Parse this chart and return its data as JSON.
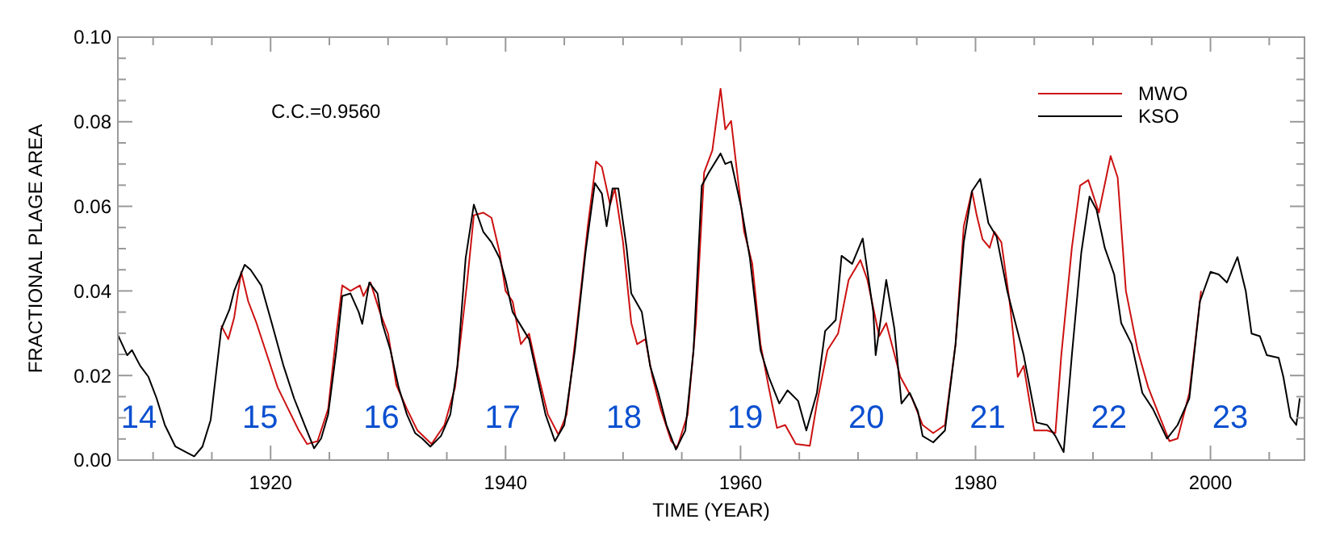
{
  "chart_data": {
    "type": "line",
    "xlabel": "TIME (YEAR)",
    "ylabel": "FRACTIONAL PLAGE AREA",
    "xlim": [
      1907,
      2008
    ],
    "ylim": [
      0,
      0.1
    ],
    "xticks": [
      {
        "value": 1910,
        "label": null
      },
      {
        "value": 1915,
        "label": null
      },
      1920,
      {
        "value": 1925,
        "label": null
      },
      {
        "value": 1930,
        "label": null
      },
      {
        "value": 1935,
        "label": null
      },
      1940,
      {
        "value": 1945,
        "label": null
      },
      {
        "value": 1950,
        "label": null
      },
      {
        "value": 1955,
        "label": null
      },
      1960,
      {
        "value": 1965,
        "label": null
      },
      {
        "value": 1970,
        "label": null
      },
      {
        "value": 1975,
        "label": null
      },
      1980,
      {
        "value": 1985,
        "label": null
      },
      {
        "value": 1990,
        "label": null
      },
      {
        "value": 1995,
        "label": null
      },
      2000,
      {
        "value": 2005,
        "label": null
      }
    ],
    "yticks": [
      {
        "value": 0,
        "label": "0.00"
      },
      {
        "value": 0.005,
        "label": null
      },
      {
        "value": 0.01,
        "label": null
      },
      {
        "value": 0.015,
        "label": null
      },
      {
        "value": 0.02,
        "label": "0.02"
      },
      {
        "value": 0.025,
        "label": null
      },
      {
        "value": 0.03,
        "label": null
      },
      {
        "value": 0.035,
        "label": null
      },
      {
        "value": 0.04,
        "label": "0.04"
      },
      {
        "value": 0.045,
        "label": null
      },
      {
        "value": 0.05,
        "label": null
      },
      {
        "value": 0.055,
        "label": null
      },
      {
        "value": 0.06,
        "label": "0.06"
      },
      {
        "value": 0.065,
        "label": null
      },
      {
        "value": 0.07,
        "label": null
      },
      {
        "value": 0.075,
        "label": null
      },
      {
        "value": 0.08,
        "label": "0.08"
      },
      {
        "value": 0.085,
        "label": null
      },
      {
        "value": 0.09,
        "label": null
      },
      {
        "value": 0.095,
        "label": null
      },
      {
        "value": 0.1,
        "label": "0.10"
      }
    ],
    "grid": false,
    "legend": "top right",
    "marker": "none",
    "line_style": "solid",
    "series": [
      {
        "name": "MWO",
        "color": "#cc1111",
        "x": [
          1915.8,
          1916.4,
          1916.9,
          1917.5,
          1918.1,
          1918.8,
          1919.7,
          1920.6,
          1921.5,
          1922.4,
          1923.1,
          1924.0,
          1924.9,
          1925.6,
          1926.1,
          1926.8,
          1927.6,
          1927.9,
          1928.5,
          1929.3,
          1930.0,
          1930.7,
          1931.6,
          1932.5,
          1933.7,
          1934.8,
          1935.7,
          1936.7,
          1937.3,
          1938.1,
          1938.8,
          1939.5,
          1940.0,
          1940.6,
          1941.3,
          1942.0,
          1942.7,
          1943.6,
          1944.5,
          1945.2,
          1946.1,
          1947.0,
          1947.7,
          1948.2,
          1948.9,
          1949.3,
          1950.0,
          1950.7,
          1951.2,
          1951.9,
          1952.5,
          1953.2,
          1954.1,
          1954.6,
          1955.5,
          1956.2,
          1956.9,
          1957.6,
          1958.3,
          1958.7,
          1959.2,
          1959.6,
          1960.3,
          1961.0,
          1961.7,
          1962.4,
          1963.1,
          1963.8,
          1964.7,
          1965.9,
          1966.5,
          1967.4,
          1968.3,
          1969.2,
          1970.2,
          1970.8,
          1971.8,
          1972.4,
          1973.6,
          1974.6,
          1975.5,
          1976.4,
          1977.4,
          1978.3,
          1979.0,
          1979.7,
          1980.1,
          1980.6,
          1981.2,
          1981.6,
          1982.2,
          1982.9,
          1983.6,
          1984.1,
          1985.0,
          1986.1,
          1986.8,
          1987.3,
          1988.2,
          1988.9,
          1989.6,
          1990.5,
          1991.5,
          1992.1,
          1992.8,
          1993.8,
          1994.7,
          1995.6,
          1996.5,
          1997.2,
          1998.2,
          1999.2
        ],
        "values": [
          0.0318,
          0.0286,
          0.0337,
          0.0445,
          0.0375,
          0.0324,
          0.0248,
          0.0172,
          0.0121,
          0.007,
          0.0038,
          0.0045,
          0.0121,
          0.0299,
          0.0413,
          0.04,
          0.0413,
          0.0388,
          0.042,
          0.035,
          0.0299,
          0.0178,
          0.0121,
          0.007,
          0.0038,
          0.0083,
          0.0172,
          0.0413,
          0.0579,
          0.0585,
          0.0573,
          0.049,
          0.04,
          0.0375,
          0.0274,
          0.0299,
          0.021,
          0.0108,
          0.006,
          0.0108,
          0.0324,
          0.0553,
          0.0706,
          0.0693,
          0.0604,
          0.0642,
          0.0515,
          0.0324,
          0.0274,
          0.0286,
          0.0197,
          0.0121,
          0.0045,
          0.0029,
          0.0108,
          0.0324,
          0.068,
          0.0732,
          0.0878,
          0.0782,
          0.0802,
          0.0706,
          0.0541,
          0.0464,
          0.0274,
          0.0172,
          0.0076,
          0.0083,
          0.0038,
          0.0034,
          0.0134,
          0.026,
          0.0299,
          0.0426,
          0.0473,
          0.0426,
          0.0293,
          0.0324,
          0.0197,
          0.0146,
          0.0083,
          0.0064,
          0.0083,
          0.0274,
          0.0553,
          0.0636,
          0.0579,
          0.0522,
          0.0502,
          0.054,
          0.0515,
          0.0375,
          0.0197,
          0.0223,
          0.007,
          0.007,
          0.0064,
          0.0248,
          0.0502,
          0.0649,
          0.0662,
          0.0585,
          0.0719,
          0.0668,
          0.04,
          0.026,
          0.0172,
          0.0108,
          0.0045,
          0.0051,
          0.0159,
          0.04
        ]
      },
      {
        "name": "KSO",
        "color": "#000000",
        "x": [
          1907.0,
          1907.8,
          1908.2,
          1908.9,
          1909.6,
          1910.3,
          1911.0,
          1911.9,
          1912.8,
          1913.5,
          1914.2,
          1914.9,
          1915.8,
          1916.5,
          1916.9,
          1917.8,
          1918.3,
          1919.2,
          1920.1,
          1921.1,
          1922.0,
          1922.9,
          1923.7,
          1924.3,
          1924.9,
          1925.6,
          1926.1,
          1926.8,
          1927.5,
          1927.8,
          1928.4,
          1929.1,
          1929.5,
          1930.2,
          1930.9,
          1931.6,
          1932.3,
          1932.9,
          1933.6,
          1934.5,
          1935.3,
          1935.9,
          1936.6,
          1937.3,
          1938.1,
          1938.8,
          1939.5,
          1940.0,
          1940.6,
          1941.3,
          1942.0,
          1942.7,
          1943.4,
          1944.2,
          1945.0,
          1945.9,
          1946.8,
          1947.6,
          1948.2,
          1948.6,
          1949.1,
          1949.6,
          1950.3,
          1950.7,
          1951.6,
          1952.3,
          1953.0,
          1953.7,
          1954.5,
          1955.3,
          1956.0,
          1956.7,
          1957.3,
          1958.3,
          1958.7,
          1959.2,
          1960.1,
          1960.8,
          1961.7,
          1962.4,
          1963.3,
          1964.0,
          1964.9,
          1965.6,
          1966.5,
          1967.2,
          1968.1,
          1968.6,
          1969.5,
          1970.4,
          1971.3,
          1971.5,
          1972.4,
          1973.1,
          1973.7,
          1974.4,
          1975.1,
          1975.5,
          1976.4,
          1977.4,
          1978.3,
          1979.0,
          1979.7,
          1980.4,
          1981.1,
          1981.8,
          1982.7,
          1983.4,
          1984.1,
          1984.8,
          1985.2,
          1986.1,
          1986.8,
          1987.5,
          1988.2,
          1989.0,
          1989.7,
          1990.3,
          1991.0,
          1991.8,
          1992.4,
          1993.3,
          1994.2,
          1995.1,
          1996.3,
          1997.2,
          1998.2,
          1999.1,
          2000.0,
          2000.7,
          2001.4,
          2002.3,
          2003.0,
          2003.5,
          2004.2,
          2004.8,
          2005.8,
          2006.2,
          2006.8,
          2007.3,
          2007.6
        ],
        "values": [
          0.0296,
          0.0248,
          0.026,
          0.0223,
          0.0197,
          0.0146,
          0.0083,
          0.0032,
          0.0019,
          0.0009,
          0.0032,
          0.0095,
          0.031,
          0.0356,
          0.04,
          0.0462,
          0.045,
          0.0413,
          0.0324,
          0.0223,
          0.0146,
          0.0083,
          0.0028,
          0.0051,
          0.0108,
          0.026,
          0.0388,
          0.0394,
          0.035,
          0.0322,
          0.042,
          0.0394,
          0.0324,
          0.026,
          0.0172,
          0.0108,
          0.0064,
          0.0051,
          0.0032,
          0.0057,
          0.0108,
          0.0223,
          0.0477,
          0.0604,
          0.054,
          0.0515,
          0.0477,
          0.0426,
          0.035,
          0.0318,
          0.0286,
          0.0197,
          0.0108,
          0.0045,
          0.0083,
          0.026,
          0.049,
          0.0655,
          0.063,
          0.0553,
          0.0642,
          0.0642,
          0.0502,
          0.0394,
          0.035,
          0.0223,
          0.0159,
          0.0083,
          0.0025,
          0.007,
          0.026,
          0.0649,
          0.068,
          0.0725,
          0.07,
          0.0706,
          0.0592,
          0.0477,
          0.026,
          0.0197,
          0.0134,
          0.0165,
          0.014,
          0.007,
          0.0159,
          0.0305,
          0.0331,
          0.0483,
          0.0464,
          0.0524,
          0.035,
          0.0248,
          0.0426,
          0.031,
          0.0134,
          0.0159,
          0.0115,
          0.0057,
          0.0042,
          0.007,
          0.0274,
          0.0515,
          0.0636,
          0.0665,
          0.056,
          0.0528,
          0.04,
          0.0324,
          0.0248,
          0.0146,
          0.0089,
          0.0083,
          0.0057,
          0.0019,
          0.0248,
          0.049,
          0.0623,
          0.0592,
          0.0502,
          0.0439,
          0.0324,
          0.0274,
          0.0159,
          0.0121,
          0.0051,
          0.0083,
          0.0146,
          0.0375,
          0.0445,
          0.0439,
          0.042,
          0.048,
          0.04,
          0.0299,
          0.0293,
          0.0248,
          0.0242,
          0.0197,
          0.0102,
          0.0083,
          0.0146
        ]
      }
    ],
    "annotations": [
      "C.C.=0.9560",
      "14",
      "15",
      "16",
      "17",
      "18",
      "19",
      "20",
      "21",
      "22",
      "23"
    ]
  }
}
